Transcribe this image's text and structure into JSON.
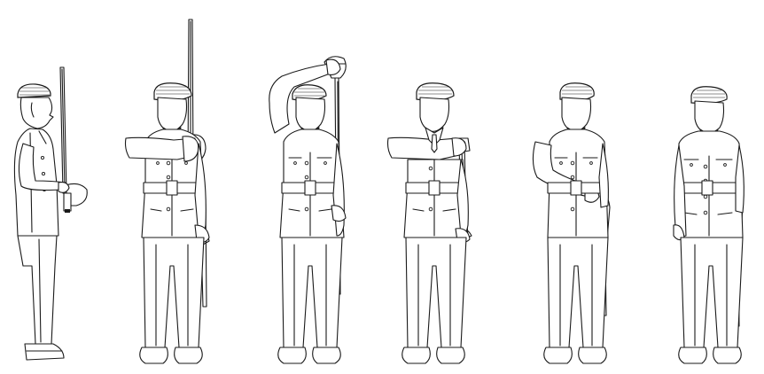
{
  "diagram": {
    "figures": [
      {
        "id": "figure-1",
        "view": "side"
      },
      {
        "id": "figure-2",
        "view": "front"
      },
      {
        "id": "figure-3",
        "view": "front"
      },
      {
        "id": "figure-4",
        "view": "front"
      },
      {
        "id": "figure-5",
        "view": "front"
      },
      {
        "id": "figure-6",
        "view": "front"
      }
    ]
  }
}
